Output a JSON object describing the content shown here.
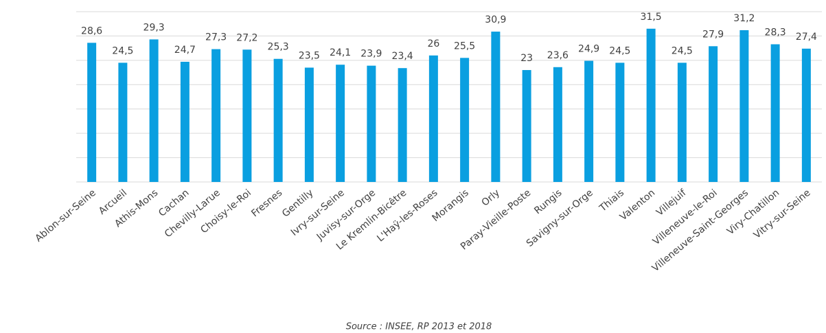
{
  "chart_data": {
    "type": "bar",
    "categories": [
      "Ablon-sur-Seine",
      "Arcueil",
      "Athis-Mons",
      "Cachan",
      "Chevilly-Larue",
      "Choisy-le-Roi",
      "Fresnes",
      "Gentilly",
      "Ivry-sur-Seine",
      "Juvisy-sur-Orge",
      "Le Kremlin-Bicêtre",
      "L'Haÿ-les-Roses",
      "Morangis",
      "Orly",
      "Paray-Vieille-Poste",
      "Rungis",
      "Savigny-sur-Orge",
      "Thiais",
      "Valenton",
      "Villejuif",
      "Villeneuve-le-Roi",
      "Villeneuve-Saint-Georges",
      "Viry-Chatillon",
      "Vitry-sur-Seine"
    ],
    "values": [
      28.6,
      24.5,
      29.3,
      24.7,
      27.3,
      27.2,
      25.3,
      23.5,
      24.1,
      23.9,
      23.4,
      26,
      25.5,
      30.9,
      23,
      23.6,
      24.9,
      24.5,
      31.5,
      24.5,
      27.9,
      31.2,
      28.3,
      27.4
    ],
    "value_labels": [
      "28,6",
      "24,5",
      "29,3",
      "24,7",
      "27,3",
      "27,2",
      "25,3",
      "23,5",
      "24,1",
      "23,9",
      "23,4",
      "26",
      "25,5",
      "30,9",
      "23",
      "23,6",
      "24,9",
      "24,5",
      "31,5",
      "24,5",
      "27,9",
      "31,2",
      "28,3",
      "27,4"
    ],
    "color": "#0a9fe0",
    "ylim": [
      0,
      35
    ],
    "yticks": [
      0,
      5,
      10,
      15,
      20,
      25,
      30,
      35
    ],
    "grid": true,
    "source": "Source : INSEE, RP 2013 et 2018"
  }
}
